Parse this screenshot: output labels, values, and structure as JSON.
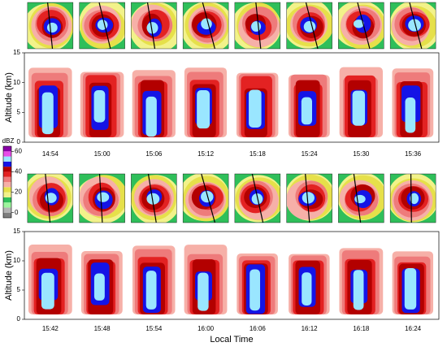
{
  "colorbar": {
    "title": "dBZ",
    "lim": [
      -5,
      65
    ],
    "ticks": [
      0,
      20,
      40,
      60
    ],
    "colors": [
      "#7f7f7f",
      "#b4b4b4",
      "#9df59d",
      "#2fbf5a",
      "#f2f28a",
      "#e6e04a",
      "#f6b0a8",
      "#ee7b7b",
      "#e32222",
      "#b30000",
      "#1414e6",
      "#9ae6ff",
      "#e84ce8",
      "#8a00a8"
    ]
  },
  "rows": [
    {
      "times": [
        "14:54",
        "15:00",
        "15:06",
        "15:12",
        "15:18",
        "15:24",
        "15:30",
        "15:36"
      ],
      "ylabel": "Altitude (km)",
      "ylim": [
        0,
        15
      ],
      "yticks": [
        0,
        5,
        10,
        15
      ]
    },
    {
      "times": [
        "15:42",
        "15:48",
        "15:54",
        "16:00",
        "16:06",
        "16:12",
        "16:18",
        "16:24"
      ],
      "ylabel": "Altitude (km)",
      "ylim": [
        0,
        15
      ],
      "yticks": [
        0,
        5,
        10,
        15
      ]
    }
  ],
  "xlabel": "Local Time"
}
